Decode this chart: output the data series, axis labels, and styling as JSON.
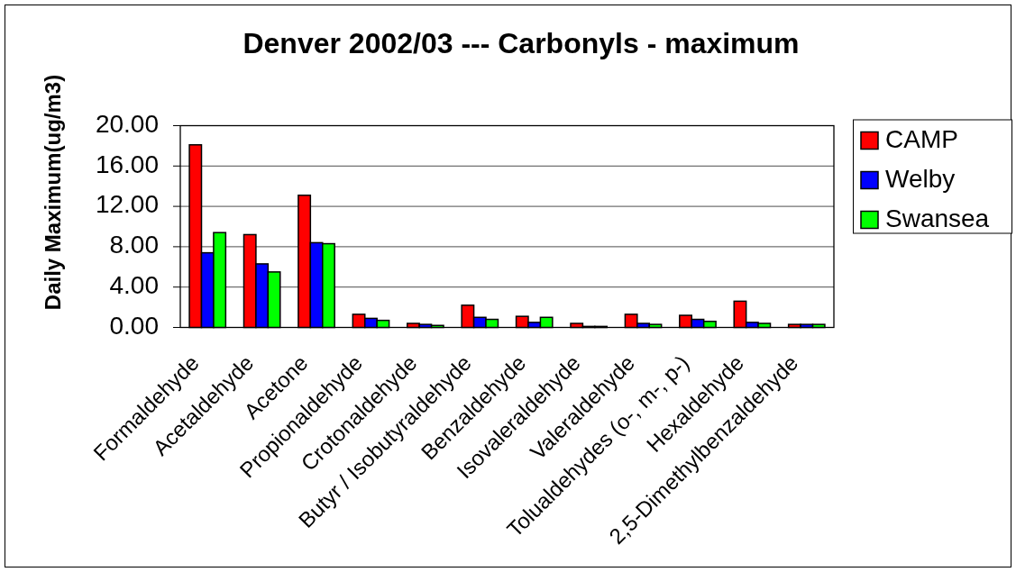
{
  "chart_data": {
    "type": "bar",
    "title": "Denver 2002/03 --- Carbonyls - maximum",
    "ylabel": "Daily Maximum(ug/m3)",
    "categories": [
      "Formaldehyde",
      "Acetaldehyde",
      "Acetone",
      "Propionaldehyde",
      "Crotonaldehyde",
      "Butyr / Isobutyraldehyde",
      "Benzaldehyde",
      "Isovaleraldehyde",
      "Valeraldehyde",
      "Tolualdehydes (o-, m-, p-)",
      "Hexaldehyde",
      "2,5-Dimethylbenzaldehyde"
    ],
    "series": [
      {
        "name": "CAMP",
        "color": "#ff0000",
        "values": [
          18.1,
          9.2,
          13.1,
          1.3,
          0.4,
          2.2,
          1.1,
          0.4,
          1.3,
          1.2,
          2.6,
          0.3
        ]
      },
      {
        "name": "Welby",
        "color": "#0000ff",
        "values": [
          7.4,
          6.3,
          8.4,
          0.9,
          0.3,
          1.0,
          0.5,
          0.1,
          0.4,
          0.8,
          0.5,
          0.3
        ]
      },
      {
        "name": "Swansea",
        "color": "#00ff00",
        "values": [
          9.4,
          5.5,
          8.3,
          0.7,
          0.2,
          0.8,
          1.0,
          0.1,
          0.3,
          0.6,
          0.4,
          0.3
        ]
      }
    ],
    "ylim": [
      0,
      20
    ],
    "yticks": [
      {
        "value": 0,
        "label": "0.00"
      },
      {
        "value": 4,
        "label": "4.00"
      },
      {
        "value": 8,
        "label": "8.00"
      },
      {
        "value": 12,
        "label": "12.00"
      },
      {
        "value": 16,
        "label": "16.00"
      },
      {
        "value": 20,
        "label": "20.00"
      }
    ],
    "grid": "y",
    "legend": "right"
  }
}
